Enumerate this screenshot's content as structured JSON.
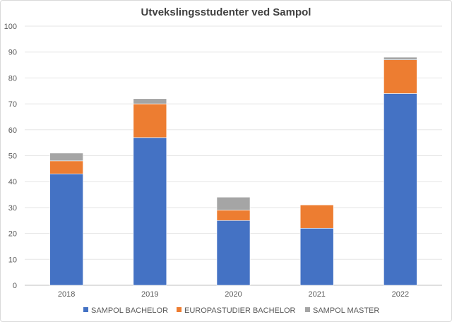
{
  "chart_data": {
    "type": "bar",
    "stacked": true,
    "title": "Utvekslingsstudenter ved Sampol",
    "xlabel": "",
    "ylabel": "",
    "categories": [
      "2018",
      "2019",
      "2020",
      "2021",
      "2022"
    ],
    "series": [
      {
        "name": "SAMPOL BACHELOR",
        "color": "#4472C4",
        "values": [
          43,
          57,
          25,
          22,
          74
        ]
      },
      {
        "name": "EUROPASTUDIER BACHELOR",
        "color": "#ED7D31",
        "values": [
          5,
          13,
          4,
          9,
          13
        ]
      },
      {
        "name": "SAMPOL MASTER",
        "color": "#A5A5A5",
        "values": [
          3,
          2,
          5,
          0,
          1
        ]
      }
    ],
    "ylim": [
      0,
      100
    ],
    "yticks": [
      "0",
      "10",
      "20",
      "30",
      "40",
      "50",
      "60",
      "70",
      "80",
      "90",
      "100"
    ],
    "grid": true,
    "legend": "bottom"
  }
}
